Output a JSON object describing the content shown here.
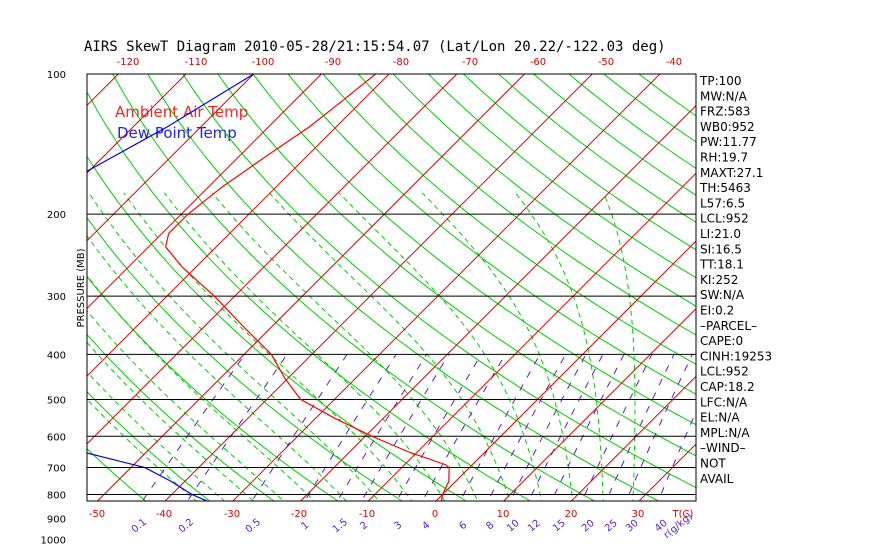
{
  "chart_data": {
    "type": "line",
    "title": "AIRS SkewT Diagram 2010-05-28/21:15:54.07 (Lat/Lon 20.22/-122.03 deg)",
    "ylabel": "PRESSURE (MB)",
    "y_scale": "log",
    "ylim": [
      1050,
      100
    ],
    "xlim": [
      -50,
      40
    ],
    "pressure_ticks": [
      "100",
      "200",
      "300",
      "400",
      "500",
      "600",
      "700",
      "800",
      "900",
      "1000"
    ],
    "pressure_levels": [
      100,
      200,
      300,
      400,
      500,
      600,
      700,
      800,
      900,
      1000
    ],
    "bottom_temp_ticks": [
      "-50",
      "-40",
      "-30",
      "-20",
      "-10",
      "0",
      "10",
      "20",
      "30",
      "T(C)"
    ],
    "top_temp_ticks": [
      "-120",
      "-110",
      "-100",
      "-90",
      "-80",
      "-70",
      "-60",
      "-50",
      "-40"
    ],
    "mixing_ratio_labels": [
      "0.1",
      "0.2",
      "0.5",
      "1",
      "1.5",
      "2",
      "3",
      "4",
      "6",
      "8",
      "10",
      "12",
      "15",
      "20",
      "25",
      "30",
      "40",
      "r(g/kg)"
    ],
    "legend": [
      {
        "label": "Ambient Air Temp",
        "color": "#ff2020"
      },
      {
        "label": "Dew Point Temp",
        "color": "#2020e0"
      }
    ],
    "series": [
      {
        "name": "Ambient Air Temp",
        "color": "#ff0000",
        "points": [
          [
            100,
            -72
          ],
          [
            115,
            -73
          ],
          [
            130,
            -74
          ],
          [
            150,
            -76
          ],
          [
            175,
            -78
          ],
          [
            200,
            -79
          ],
          [
            220,
            -79
          ],
          [
            235,
            -77.5
          ],
          [
            260,
            -72
          ],
          [
            300,
            -63
          ],
          [
            350,
            -54
          ],
          [
            400,
            -46
          ],
          [
            450,
            -40.5
          ],
          [
            500,
            -35
          ],
          [
            550,
            -27
          ],
          [
            600,
            -19
          ],
          [
            650,
            -11
          ],
          [
            690,
            -4
          ],
          [
            700,
            -3
          ],
          [
            750,
            -1
          ],
          [
            800,
            0
          ],
          [
            850,
            1.5
          ],
          [
            880,
            -2
          ],
          [
            910,
            -1
          ],
          [
            950,
            1
          ],
          [
            1000,
            5
          ]
        ]
      },
      {
        "name": "Dew Point Temp",
        "color": "#0000dd",
        "points": [
          [
            100,
            -90
          ],
          [
            130,
            -95
          ],
          [
            160,
            -100
          ],
          [
            180,
            -103
          ],
          [
            200,
            -106
          ],
          [
            235,
            -110
          ],
          [
            260,
            -116
          ],
          [
            300,
            -123
          ],
          [
            350,
            -122
          ],
          [
            400,
            -121
          ],
          [
            450,
            -111
          ],
          [
            500,
            -98
          ],
          [
            550,
            -84
          ],
          [
            600,
            -71
          ],
          [
            650,
            -59
          ],
          [
            700,
            -48
          ],
          [
            750,
            -42
          ],
          [
            800,
            -37
          ],
          [
            850,
            -31
          ],
          [
            900,
            -17
          ],
          [
            950,
            -6
          ],
          [
            1000,
            3
          ]
        ]
      }
    ],
    "indices": [
      "TP:100",
      "MW:N/A",
      "FRZ:583",
      "WB0:952",
      "PW:11.77",
      "RH:19.7",
      "MAXT:27.1",
      "TH:5463",
      "L57:6.5",
      "LCL:952",
      "LI:21.0",
      "SI:16.5",
      "TT:18.1",
      "KI:252",
      "SW:N/A",
      "EI:0.2",
      "–PARCEL–",
      "CAPE:0",
      "CINH:19253",
      "LCL:952",
      "CAP:18.2",
      "LFC:N/A",
      "EL:N/A",
      "MPL:N/A",
      "–WIND–",
      "NOT",
      "AVAIL"
    ],
    "colors": {
      "isotherm": "#dd0000",
      "dry_adiabat": "#00cc00",
      "moist_adiabat": "#00cc00",
      "mixing_ratio": "#5a1fbf",
      "frame": "#000000"
    }
  }
}
